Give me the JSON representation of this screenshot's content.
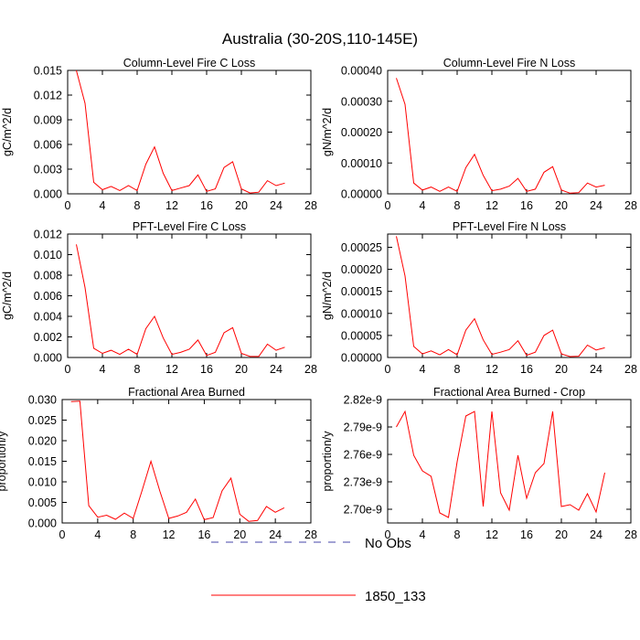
{
  "figure_title": "Australia (30-20S,110-145E)",
  "legend": [
    {
      "label": "No Obs",
      "style": "dashed",
      "color": "#4444aa"
    },
    {
      "label": "1850_133",
      "style": "solid",
      "color": "#ff0000"
    }
  ],
  "chart_data": [
    {
      "type": "line",
      "title": "Column-Level Fire C Loss",
      "ylabel": "gC/m^2/d",
      "xlim": [
        0,
        28
      ],
      "ylim": [
        0,
        0.015
      ],
      "xticks": [
        "0",
        "4",
        "8",
        "12",
        "16",
        "20",
        "24",
        "28"
      ],
      "yticks": [
        "0.000",
        "0.003",
        "0.006",
        "0.009",
        "0.012",
        "0.015"
      ],
      "series": [
        {
          "name": "1850_133",
          "x": [
            1,
            2,
            3,
            4,
            5,
            6,
            7,
            8,
            9,
            10,
            11,
            12,
            13,
            14,
            15,
            16,
            17,
            18,
            19,
            20,
            21,
            22,
            23,
            24,
            25
          ],
          "y": [
            0.015,
            0.011,
            0.0014,
            0.0005,
            0.0009,
            0.0004,
            0.001,
            0.0004,
            0.0036,
            0.0057,
            0.0025,
            0.0004,
            0.0007,
            0.001,
            0.0023,
            0.0003,
            0.0006,
            0.0032,
            0.0039,
            0.0006,
            0.0001,
            0.0002,
            0.0016,
            0.001,
            0.0013
          ]
        }
      ]
    },
    {
      "type": "line",
      "title": "Column-Level Fire N Loss",
      "ylabel": "gN/m^2/d",
      "xlim": [
        0,
        28
      ],
      "ylim": [
        0,
        0.0004
      ],
      "xticks": [
        "0",
        "4",
        "8",
        "12",
        "16",
        "20",
        "24",
        "28"
      ],
      "yticks": [
        "0.00000",
        "0.00010",
        "0.00020",
        "0.00030",
        "0.00040"
      ],
      "series": [
        {
          "name": "1850_133",
          "x": [
            1,
            2,
            3,
            4,
            5,
            6,
            7,
            8,
            9,
            10,
            11,
            12,
            13,
            14,
            15,
            16,
            17,
            18,
            19,
            20,
            21,
            22,
            23,
            24,
            25
          ],
          "y": [
            0.000375,
            0.00029,
            3.5e-05,
            1.2e-05,
            2.2e-05,
            8e-06,
            2.2e-05,
            8e-06,
            8.5e-05,
            0.000128,
            6e-05,
            1e-05,
            1.5e-05,
            2.5e-05,
            5e-05,
            8e-06,
            1.5e-05,
            7e-05,
            8.8e-05,
            1.2e-05,
            2e-06,
            4e-06,
            3.5e-05,
            2.2e-05,
            2.8e-05
          ]
        }
      ]
    },
    {
      "type": "line",
      "title": "PFT-Level Fire C Loss",
      "ylabel": "gC/m^2/d",
      "xlim": [
        0,
        28
      ],
      "ylim": [
        0,
        0.012
      ],
      "xticks": [
        "0",
        "4",
        "8",
        "12",
        "16",
        "20",
        "24",
        "28"
      ],
      "yticks": [
        "0.000",
        "0.002",
        "0.004",
        "0.006",
        "0.008",
        "0.010",
        "0.012"
      ],
      "series": [
        {
          "name": "1850_133",
          "x": [
            1,
            2,
            3,
            4,
            5,
            6,
            7,
            8,
            9,
            10,
            11,
            12,
            13,
            14,
            15,
            16,
            17,
            18,
            19,
            20,
            21,
            22,
            23,
            24,
            25
          ],
          "y": [
            0.011,
            0.0068,
            0.0009,
            0.0004,
            0.0007,
            0.0003,
            0.0008,
            0.0003,
            0.0028,
            0.004,
            0.0019,
            0.0003,
            0.0005,
            0.0008,
            0.0017,
            0.0002,
            0.0005,
            0.0024,
            0.0029,
            0.0004,
            0.0001,
            0.0001,
            0.0013,
            0.0007,
            0.001
          ]
        }
      ]
    },
    {
      "type": "line",
      "title": "PFT-Level Fire N Loss",
      "ylabel": "gN/m^2/d",
      "xlim": [
        0,
        28
      ],
      "ylim": [
        0,
        0.00028
      ],
      "xticks": [
        "0",
        "4",
        "8",
        "12",
        "16",
        "20",
        "24",
        "28"
      ],
      "yticks": [
        "0.00000",
        "0.00005",
        "0.00010",
        "0.00015",
        "0.00020",
        "0.00025"
      ],
      "series": [
        {
          "name": "1850_133",
          "x": [
            1,
            2,
            3,
            4,
            5,
            6,
            7,
            8,
            9,
            10,
            11,
            12,
            13,
            14,
            15,
            16,
            17,
            18,
            19,
            20,
            21,
            22,
            23,
            24,
            25
          ],
          "y": [
            0.000275,
            0.000185,
            2.5e-05,
            8e-06,
            1.5e-05,
            6e-06,
            1.8e-05,
            6e-06,
            6.2e-05,
            8.8e-05,
            4e-05,
            7e-06,
            1.2e-05,
            1.8e-05,
            3.8e-05,
            5e-06,
            1.2e-05,
            5e-05,
            6.2e-05,
            8e-06,
            2e-06,
            3e-06,
            2.8e-05,
            1.7e-05,
            2.2e-05
          ]
        }
      ]
    },
    {
      "type": "line",
      "title": "Fractional Area Burned",
      "ylabel": "proportion/y",
      "xlim": [
        0,
        28
      ],
      "ylim": [
        0,
        0.03
      ],
      "xticks": [
        "0",
        "4",
        "8",
        "12",
        "16",
        "20",
        "24",
        "28"
      ],
      "yticks": [
        "0.000",
        "0.005",
        "0.010",
        "0.015",
        "0.020",
        "0.025",
        "0.030"
      ],
      "series": [
        {
          "name": "1850_133",
          "x": [
            1,
            2,
            3,
            4,
            5,
            6,
            7,
            8,
            9,
            10,
            11,
            12,
            13,
            14,
            15,
            16,
            17,
            18,
            19,
            20,
            21,
            22,
            23,
            24,
            25
          ],
          "y": [
            0.0295,
            0.0296,
            0.0042,
            0.0014,
            0.0019,
            0.0009,
            0.0024,
            0.0011,
            0.0079,
            0.015,
            0.0077,
            0.0011,
            0.0017,
            0.0026,
            0.0058,
            0.0008,
            0.0013,
            0.0078,
            0.0109,
            0.0021,
            0.0004,
            0.0006,
            0.004,
            0.0026,
            0.0037
          ]
        }
      ]
    },
    {
      "type": "line",
      "title": "Fractional Area Burned - Crop",
      "ylabel": "proportion/y",
      "xlim": [
        0,
        28
      ],
      "ylim": [
        2.685e-09,
        2.82e-09
      ],
      "xticks": [
        "0",
        "4",
        "8",
        "12",
        "16",
        "20",
        "24",
        "28"
      ],
      "ytick_values": [
        2.7e-09,
        2.73e-09,
        2.76e-09,
        2.79e-09,
        2.82e-09
      ],
      "yticks": [
        "2.70e-9",
        "2.73e-9",
        "2.76e-9",
        "2.79e-9",
        "2.82e-9"
      ],
      "series": [
        {
          "name": "1850_133",
          "x": [
            1,
            2,
            3,
            4,
            5,
            6,
            7,
            8,
            9,
            10,
            11,
            12,
            13,
            14,
            15,
            16,
            17,
            18,
            19,
            20,
            21,
            22,
            23,
            24,
            25
          ],
          "y": [
            2.79e-09,
            2.807e-09,
            2.759e-09,
            2.742e-09,
            2.736e-09,
            2.696e-09,
            2.691e-09,
            2.752e-09,
            2.802e-09,
            2.807e-09,
            2.703e-09,
            2.807e-09,
            2.718e-09,
            2.699e-09,
            2.759e-09,
            2.712e-09,
            2.74e-09,
            2.75e-09,
            2.807e-09,
            2.703e-09,
            2.705e-09,
            2.699e-09,
            2.717e-09,
            2.697e-09,
            2.74e-09
          ]
        }
      ]
    }
  ]
}
